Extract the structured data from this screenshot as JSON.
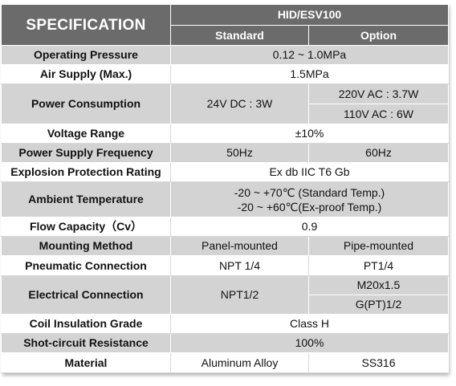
{
  "header": {
    "title": "SPECIFICATION",
    "model": "HID/ESV100",
    "col_standard": "Standard",
    "col_option": "Option"
  },
  "rows": {
    "operating_pressure": {
      "label": "Operating Pressure",
      "value": "0.12 ~ 1.0MPa"
    },
    "air_supply": {
      "label": "Air Supply (Max.)",
      "value": "1.5MPa"
    },
    "power_consumption": {
      "label": "Power Consumption",
      "standard": "24V DC : 3W",
      "option_1": "220V AC : 3.7W",
      "option_2": "110V AC : 6W"
    },
    "voltage_range": {
      "label": "Voltage Range",
      "value": "±10%"
    },
    "power_supply_frequency": {
      "label": "Power Supply Frequency",
      "standard": "50Hz",
      "option": "60Hz"
    },
    "explosion_protection": {
      "label": "Explosion Protection Rating",
      "value": "Ex db IIC T6 Gb"
    },
    "ambient_temperature": {
      "label": "Ambient Temperature",
      "line_1": "-20 ~ +70℃ (Standard Temp.)",
      "line_2": "-20 ~ +60℃(Ex-proof Temp.)"
    },
    "flow_capacity": {
      "label": "Flow Capacity（Cv）",
      "value": "0.9"
    },
    "mounting_method": {
      "label": "Mounting Method",
      "standard": "Panel-mounted",
      "option": "Pipe-mounted"
    },
    "pneumatic_connection": {
      "label": "Pneumatic Connection",
      "standard": "NPT 1/4",
      "option": "PT1/4"
    },
    "electrical_connection": {
      "label": "Electrical Connection",
      "standard": "NPT1/2",
      "option_1": "M20x1.5",
      "option_2": "G(PT)1/2"
    },
    "coil_insulation": {
      "label": "Coil Insulation Grade",
      "value": "Class H"
    },
    "short_circuit": {
      "label": "Shot-circuit Resistance",
      "value": "100%"
    },
    "material": {
      "label": "Material",
      "standard": "Aluminum Alloy",
      "option": "SS316"
    }
  },
  "colors": {
    "header_bg": "#6b6b6b",
    "row_shaded": "#d3d3d3",
    "row_plain": "#ffffff"
  }
}
